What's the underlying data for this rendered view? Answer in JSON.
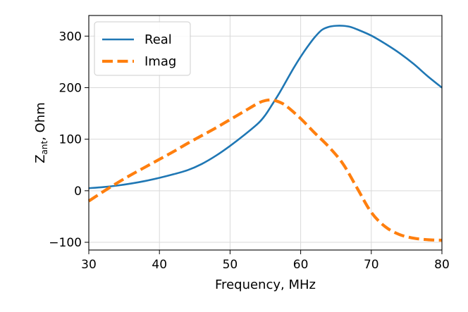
{
  "chart_data": {
    "type": "line",
    "title": "",
    "xlabel": "Frequency, MHz",
    "ylabel": {
      "base": "Z",
      "subscript": "ant",
      "rest": ", Ohm"
    },
    "xlim": [
      30,
      80
    ],
    "ylim": [
      -115,
      340
    ],
    "xticks": [
      30,
      40,
      50,
      60,
      70,
      80
    ],
    "yticks": [
      -100,
      0,
      100,
      200,
      300
    ],
    "ytick_labels": [
      "−100",
      "0",
      "100",
      "200",
      "300"
    ],
    "grid": true,
    "legend_position": "top-left",
    "series": [
      {
        "name": "Real",
        "color": "#1f77b4",
        "style": "solid",
        "x": [
          30,
          32,
          34,
          36,
          38,
          40,
          42,
          44,
          46,
          48,
          50,
          52,
          54,
          55,
          56,
          57,
          58,
          59,
          60,
          61,
          62,
          63,
          64,
          65,
          66,
          67,
          68,
          70,
          72,
          74,
          76,
          78,
          80
        ],
        "y": [
          5,
          7,
          10,
          14,
          19,
          25,
          32,
          40,
          52,
          68,
          87,
          108,
          131,
          147,
          168,
          190,
          214,
          238,
          260,
          280,
          298,
          312,
          318,
          320,
          320,
          318,
          313,
          301,
          285,
          267,
          246,
          222,
          200
        ]
      },
      {
        "name": "Imag",
        "color": "#ff7f0e",
        "style": "dashed",
        "x": [
          30,
          32,
          34,
          36,
          38,
          40,
          42,
          44,
          46,
          48,
          50,
          52,
          54,
          55,
          56,
          57,
          58,
          60,
          62,
          64,
          66,
          68,
          70,
          72,
          74,
          76,
          78,
          80
        ],
        "y": [
          -20,
          -2,
          15,
          31,
          46,
          61,
          76,
          92,
          107,
          122,
          138,
          154,
          170,
          175,
          176,
          172,
          164,
          140,
          112,
          85,
          52,
          5,
          -42,
          -70,
          -85,
          -92,
          -95,
          -96
        ]
      }
    ]
  }
}
